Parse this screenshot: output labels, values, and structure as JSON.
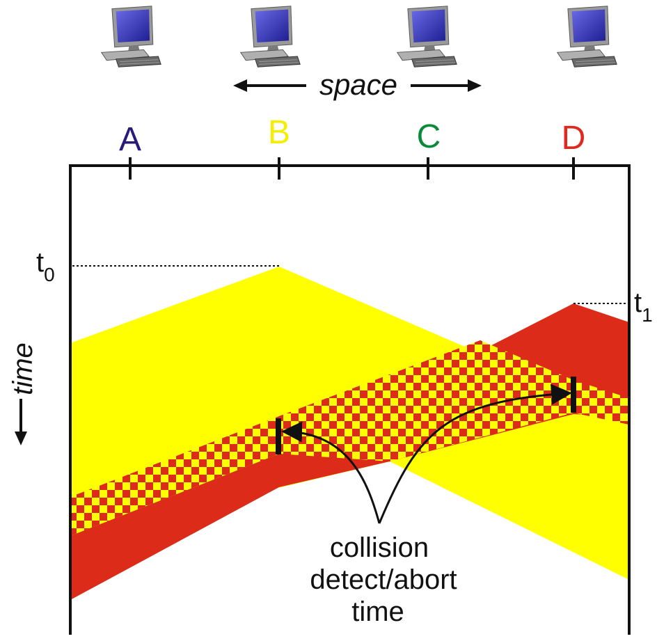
{
  "title": "",
  "space_label": "space",
  "time_label": "time",
  "t0_label": "t",
  "t0_subscript": "0",
  "t1_label": "t",
  "t1_subscript": "1",
  "nodes": [
    {
      "label": "A",
      "color": "#2a1a7a"
    },
    {
      "label": "B",
      "color": "#f4ee00"
    },
    {
      "label": "C",
      "color": "#0a8a3a"
    },
    {
      "label": "D",
      "color": "#e0281e"
    }
  ],
  "annotation_lines": [
    "collision",
    "detect/abort",
    "time"
  ],
  "colors": {
    "yellow_signal": "#ffff00",
    "red_signal": "#dc2b18",
    "axis": "#111111",
    "computer_screen": "#3e3ec8",
    "computer_body": "#8a8a8a"
  },
  "icons": [
    "computer-icon",
    "computer-icon",
    "computer-icon",
    "computer-icon"
  ]
}
